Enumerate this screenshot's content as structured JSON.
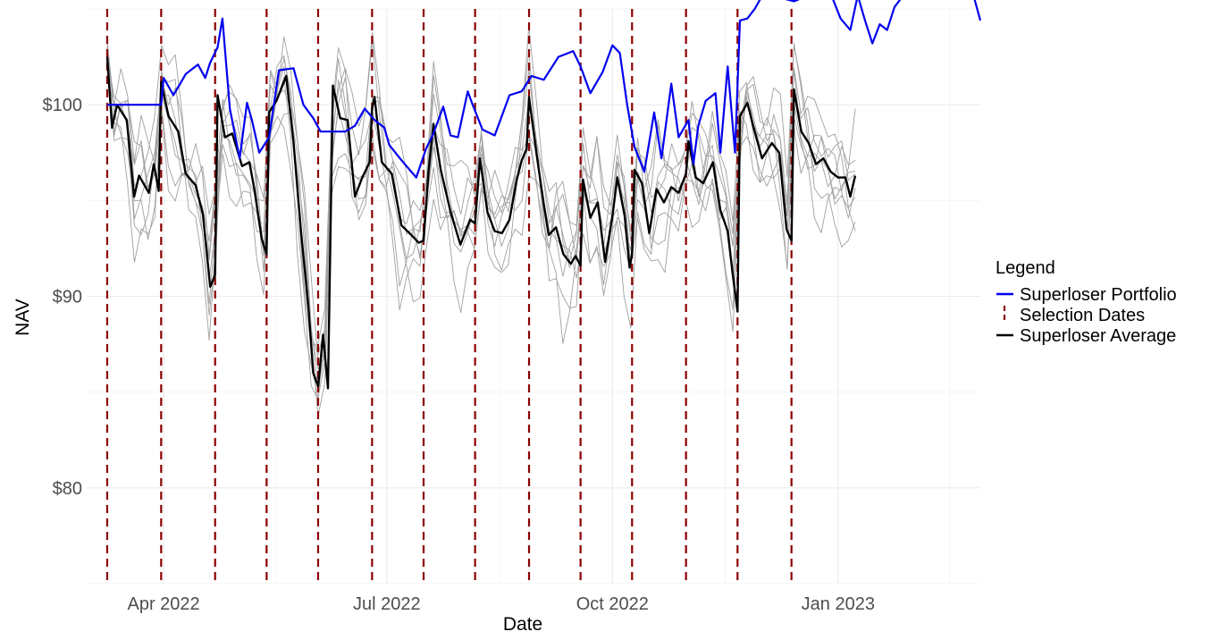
{
  "chart_data": {
    "type": "line",
    "xlabel": "Date",
    "ylabel": "NAV",
    "x_range": [
      "2022-03-01",
      "2023-02-28"
    ],
    "ylim": [
      75,
      105
    ],
    "x_ticks": [
      {
        "date": "2022-04-01",
        "label": "Apr 2022"
      },
      {
        "date": "2022-07-01",
        "label": "Jul 2022"
      },
      {
        "date": "2022-10-01",
        "label": "Oct 2022"
      },
      {
        "date": "2023-01-01",
        "label": "Jan 2023"
      }
    ],
    "y_ticks": [
      {
        "value": 80,
        "label": "$80"
      },
      {
        "value": 90,
        "label": "$90"
      },
      {
        "value": 100,
        "label": "$100"
      }
    ],
    "grid": true,
    "legend": {
      "title": "Legend",
      "position": "right",
      "entries": [
        {
          "label": "Superloser Portfolio",
          "color": "#0000ee",
          "style": "solid"
        },
        {
          "label": "Selection Dates",
          "color": "#8b0000",
          "style": "dashed"
        },
        {
          "label": "Superloser Average",
          "color": "#000000",
          "style": "solid"
        }
      ]
    },
    "selection_dates": [
      "2022-03-09",
      "2022-03-31",
      "2022-04-22",
      "2022-05-13",
      "2022-06-03",
      "2022-06-25",
      "2022-07-16",
      "2022-08-06",
      "2022-08-28",
      "2022-09-18",
      "2022-10-09",
      "2022-10-31",
      "2022-11-21",
      "2022-12-13"
    ],
    "series": [
      {
        "name": "Superloser Portfolio",
        "color": "#0000ee",
        "points": [
          [
            "2022-03-09",
            100.0
          ],
          [
            "2022-03-31",
            100.0
          ],
          [
            "2022-04-01",
            101.4
          ],
          [
            "2022-04-05",
            100.5
          ],
          [
            "2022-04-10",
            101.6
          ],
          [
            "2022-04-15",
            102.1
          ],
          [
            "2022-04-18",
            101.4
          ],
          [
            "2022-04-20",
            102.2
          ],
          [
            "2022-04-23",
            103.0
          ],
          [
            "2022-04-25",
            104.5
          ],
          [
            "2022-04-28",
            99.8
          ],
          [
            "2022-05-02",
            97.2
          ],
          [
            "2022-05-05",
            100.1
          ],
          [
            "2022-05-07",
            99.2
          ],
          [
            "2022-05-10",
            97.5
          ],
          [
            "2022-05-14",
            98.3
          ],
          [
            "2022-05-18",
            101.8
          ],
          [
            "2022-05-24",
            101.9
          ],
          [
            "2022-05-28",
            100.0
          ],
          [
            "2022-06-01",
            99.3
          ],
          [
            "2022-06-04",
            98.6
          ],
          [
            "2022-06-14",
            98.6
          ],
          [
            "2022-06-18",
            98.9
          ],
          [
            "2022-06-22",
            99.8
          ],
          [
            "2022-06-26",
            99.2
          ],
          [
            "2022-06-30",
            98.8
          ],
          [
            "2022-07-02",
            97.9
          ],
          [
            "2022-07-07",
            97.1
          ],
          [
            "2022-07-13",
            96.2
          ],
          [
            "2022-07-17",
            97.7
          ],
          [
            "2022-07-20",
            98.5
          ],
          [
            "2022-07-24",
            99.9
          ],
          [
            "2022-07-27",
            98.4
          ],
          [
            "2022-07-30",
            98.3
          ],
          [
            "2022-08-03",
            100.7
          ],
          [
            "2022-08-05",
            100.0
          ],
          [
            "2022-08-09",
            98.7
          ],
          [
            "2022-08-14",
            98.4
          ],
          [
            "2022-08-20",
            100.5
          ],
          [
            "2022-08-25",
            100.7
          ],
          [
            "2022-08-29",
            101.5
          ],
          [
            "2022-09-03",
            101.3
          ],
          [
            "2022-09-09",
            102.5
          ],
          [
            "2022-09-15",
            102.8
          ],
          [
            "2022-09-18",
            102.0
          ],
          [
            "2022-09-22",
            100.6
          ],
          [
            "2022-09-27",
            101.7
          ],
          [
            "2022-10-01",
            103.1
          ],
          [
            "2022-10-04",
            102.7
          ],
          [
            "2022-10-07",
            100.0
          ],
          [
            "2022-10-10",
            97.8
          ],
          [
            "2022-10-14",
            96.5
          ],
          [
            "2022-10-18",
            99.6
          ],
          [
            "2022-10-21",
            97.2
          ],
          [
            "2022-10-25",
            101.1
          ],
          [
            "2022-10-28",
            98.3
          ],
          [
            "2022-11-01",
            99.2
          ],
          [
            "2022-11-03",
            96.9
          ],
          [
            "2022-11-05",
            98.9
          ],
          [
            "2022-11-08",
            100.2
          ],
          [
            "2022-11-12",
            100.6
          ],
          [
            "2022-11-14",
            97.5
          ],
          [
            "2022-11-17",
            102.0
          ],
          [
            "2022-11-20",
            97.5
          ],
          [
            "2022-11-22",
            104.4
          ],
          [
            "2022-11-25",
            104.5
          ],
          [
            "2022-11-28",
            105.0
          ],
          [
            "2022-12-02",
            105.9
          ],
          [
            "2022-12-08",
            105.6
          ],
          [
            "2022-12-14",
            105.4
          ],
          [
            "2022-12-18",
            105.6
          ],
          [
            "2022-12-21",
            106.0
          ],
          [
            "2022-12-24",
            107.0
          ],
          [
            "2022-12-26",
            108.2
          ],
          [
            "2022-12-29",
            105.8
          ],
          [
            "2023-01-02",
            104.5
          ],
          [
            "2023-01-06",
            103.9
          ],
          [
            "2023-01-09",
            105.7
          ],
          [
            "2023-01-12",
            104.4
          ],
          [
            "2023-01-15",
            103.2
          ],
          [
            "2023-01-18",
            104.2
          ],
          [
            "2023-01-21",
            103.9
          ],
          [
            "2023-01-24",
            105.1
          ],
          [
            "2023-01-27",
            105.6
          ],
          [
            "2023-02-01",
            106.4
          ],
          [
            "2023-02-06",
            106.4
          ],
          [
            "2023-02-10",
            106.0
          ],
          [
            "2023-02-14",
            106.5
          ],
          [
            "2023-02-18",
            105.9
          ],
          [
            "2023-02-22",
            106.6
          ],
          [
            "2023-02-25",
            105.8
          ],
          [
            "2023-02-28",
            104.4
          ]
        ]
      },
      {
        "name": "Superloser Average",
        "color": "#000000",
        "points": [
          [
            "2022-03-09",
            102.5
          ],
          [
            "2022-03-11",
            98.8
          ],
          [
            "2022-03-13",
            100.0
          ],
          [
            "2022-03-17",
            99.2
          ],
          [
            "2022-03-20",
            95.2
          ],
          [
            "2022-03-22",
            96.3
          ],
          [
            "2022-03-26",
            95.4
          ],
          [
            "2022-03-28",
            96.9
          ],
          [
            "2022-03-30",
            95.5
          ],
          [
            "2022-03-31",
            101.2
          ],
          [
            "2022-04-03",
            99.4
          ],
          [
            "2022-04-07",
            98.6
          ],
          [
            "2022-04-10",
            96.4
          ],
          [
            "2022-04-14",
            95.8
          ],
          [
            "2022-04-17",
            94.3
          ],
          [
            "2022-04-20",
            90.5
          ],
          [
            "2022-04-22",
            91.1
          ],
          [
            "2022-04-23",
            100.5
          ],
          [
            "2022-04-26",
            98.3
          ],
          [
            "2022-04-29",
            98.5
          ],
          [
            "2022-05-03",
            96.8
          ],
          [
            "2022-05-06",
            97.0
          ],
          [
            "2022-05-08",
            95.6
          ],
          [
            "2022-05-11",
            93.0
          ],
          [
            "2022-05-13",
            92.2
          ],
          [
            "2022-05-14",
            99.6
          ],
          [
            "2022-05-17",
            100.2
          ],
          [
            "2022-05-21",
            101.5
          ],
          [
            "2022-05-24",
            98.0
          ],
          [
            "2022-05-27",
            93.4
          ],
          [
            "2022-05-30",
            89.5
          ],
          [
            "2022-06-01",
            86.0
          ],
          [
            "2022-06-03",
            85.3
          ],
          [
            "2022-06-05",
            88.0
          ],
          [
            "2022-06-07",
            85.2
          ],
          [
            "2022-06-09",
            101.0
          ],
          [
            "2022-06-12",
            99.3
          ],
          [
            "2022-06-15",
            99.2
          ],
          [
            "2022-06-18",
            95.2
          ],
          [
            "2022-06-21",
            96.2
          ],
          [
            "2022-06-24",
            97.0
          ],
          [
            "2022-06-25",
            99.8
          ],
          [
            "2022-06-26",
            100.4
          ],
          [
            "2022-06-29",
            97.0
          ],
          [
            "2022-07-03",
            96.4
          ],
          [
            "2022-07-07",
            93.7
          ],
          [
            "2022-07-11",
            93.2
          ],
          [
            "2022-07-14",
            92.8
          ],
          [
            "2022-07-16",
            92.9
          ],
          [
            "2022-07-18",
            96.5
          ],
          [
            "2022-07-20",
            99.0
          ],
          [
            "2022-07-23",
            96.6
          ],
          [
            "2022-07-27",
            94.4
          ],
          [
            "2022-07-31",
            92.7
          ],
          [
            "2022-08-04",
            94.0
          ],
          [
            "2022-08-06",
            93.8
          ],
          [
            "2022-08-08",
            97.2
          ],
          [
            "2022-08-11",
            94.4
          ],
          [
            "2022-08-14",
            93.4
          ],
          [
            "2022-08-17",
            93.3
          ],
          [
            "2022-08-20",
            94.0
          ],
          [
            "2022-08-23",
            96.1
          ],
          [
            "2022-08-25",
            97.1
          ],
          [
            "2022-08-27",
            97.7
          ],
          [
            "2022-08-28",
            100.4
          ],
          [
            "2022-08-31",
            97.5
          ],
          [
            "2022-09-03",
            94.8
          ],
          [
            "2022-09-05",
            93.2
          ],
          [
            "2022-09-08",
            93.6
          ],
          [
            "2022-09-11",
            92.2
          ],
          [
            "2022-09-14",
            91.7
          ],
          [
            "2022-09-16",
            92.1
          ],
          [
            "2022-09-18",
            91.6
          ],
          [
            "2022-09-19",
            96.1
          ],
          [
            "2022-09-22",
            94.1
          ],
          [
            "2022-09-25",
            94.9
          ],
          [
            "2022-09-28",
            91.8
          ],
          [
            "2022-10-01",
            94.2
          ],
          [
            "2022-10-03",
            96.2
          ],
          [
            "2022-10-06",
            94.2
          ],
          [
            "2022-10-08",
            91.5
          ],
          [
            "2022-10-09",
            92.2
          ],
          [
            "2022-10-10",
            96.6
          ],
          [
            "2022-10-13",
            95.9
          ],
          [
            "2022-10-16",
            93.3
          ],
          [
            "2022-10-19",
            95.6
          ],
          [
            "2022-10-22",
            94.9
          ],
          [
            "2022-10-25",
            95.7
          ],
          [
            "2022-10-28",
            95.4
          ],
          [
            "2022-10-31",
            96.4
          ],
          [
            "2022-11-01",
            98.1
          ],
          [
            "2022-11-04",
            96.2
          ],
          [
            "2022-11-07",
            95.9
          ],
          [
            "2022-11-11",
            97.0
          ],
          [
            "2022-11-14",
            94.5
          ],
          [
            "2022-11-17",
            93.4
          ],
          [
            "2022-11-19",
            91.2
          ],
          [
            "2022-11-21",
            89.2
          ],
          [
            "2022-11-22",
            99.4
          ],
          [
            "2022-11-25",
            100.1
          ],
          [
            "2022-11-28",
            98.6
          ],
          [
            "2022-12-01",
            97.2
          ],
          [
            "2022-12-05",
            98.0
          ],
          [
            "2022-12-08",
            97.5
          ],
          [
            "2022-12-11",
            93.5
          ],
          [
            "2022-12-13",
            92.9
          ],
          [
            "2022-12-14",
            100.8
          ],
          [
            "2022-12-17",
            98.6
          ],
          [
            "2022-12-20",
            98.0
          ],
          [
            "2022-12-23",
            96.9
          ],
          [
            "2022-12-26",
            97.2
          ],
          [
            "2022-12-29",
            96.5
          ],
          [
            "2023-01-01",
            96.2
          ],
          [
            "2023-01-04",
            96.2
          ],
          [
            "2023-01-06",
            95.2
          ],
          [
            "2023-01-08",
            96.3
          ]
        ]
      }
    ],
    "constituents": {
      "color": "#a0a0a0",
      "deviations": [
        [
          0.0,
          1.4,
          -0.8,
          0.9,
          -1.6,
          2.1,
          -0.4,
          1.1,
          -2.3,
          0.6,
          1.8,
          -1.2,
          0.3,
          -0.9,
          2.4,
          -1.5,
          0.7,
          1.3,
          -0.2,
          -1.9,
          1.0,
          0.4,
          -0.6,
          1.7
        ],
        [
          0.0,
          -2.2,
          1.9,
          -1.1,
          2.6,
          -0.7,
          1.5,
          -3.0,
          0.8,
          2.2,
          -1.4,
          0.5,
          1.6,
          -2.5,
          0.9,
          1.2,
          -1.8,
          2.9,
          -0.5,
          1.4,
          -2.0,
          0.6,
          1.1,
          -1.3
        ],
        [
          0.0,
          3.1,
          -1.5,
          2.4,
          -0.9,
          -2.7,
          1.6,
          0.4,
          3.3,
          -1.2,
          0.8,
          2.6,
          -3.1,
          1.9,
          -0.6,
          2.8,
          0.3,
          -2.2,
          1.7,
          0.9,
          -1.0,
          2.5,
          -0.8,
          0.2
        ],
        [
          0.0,
          -1.3,
          -2.6,
          1.2,
          0.5,
          1.9,
          -3.4,
          2.2,
          -1.1,
          -2.8,
          3.0,
          -0.5,
          2.1,
          0.7,
          -3.2,
          0.4,
          2.3,
          -1.6,
          -0.9,
          2.7,
          0.6,
          -2.9,
          1.5,
          0.8
        ],
        [
          0.0,
          0.9,
          3.5,
          -2.4,
          1.4,
          0.3,
          2.7,
          -1.9,
          -0.4,
          3.6,
          -2.6,
          1.0,
          -0.3,
          3.2,
          1.1,
          -2.1,
          -0.7,
          3.4,
          -2.8,
          0.5,
          2.0,
          -0.2,
          -3.3,
          2.6
        ],
        [
          0.0,
          -3.6,
          0.7,
          -0.5,
          -3.0,
          1.2,
          -1.0,
          3.8,
          -2.7,
          0.9,
          -0.2,
          -3.5,
          2.8,
          -1.4,
          0.6,
          -3.3,
          1.9,
          0.8,
          2.5,
          -3.1,
          1.3,
          -1.7,
          0.4,
          -2.4
        ],
        [
          0.0,
          2.3,
          -4.0,
          3.0,
          -1.8,
          -0.6,
          4.1,
          -0.8,
          1.6,
          -4.2,
          1.7,
          3.7,
          -1.0,
          -3.8,
          2.9,
          1.6,
          -4.1,
          0.2,
          -1.4,
          3.9,
          -2.7,
          1.1,
          2.8,
          -0.9
        ],
        [
          0.0,
          -0.6,
          2.1,
          -3.7,
          3.6,
          -1.5,
          -2.4,
          1.7,
          4.2,
          -1.6,
          -3.8,
          1.8,
          0.9,
          2.0,
          -4.0,
          3.5,
          -0.4,
          -3.9,
          3.3,
          -0.8,
          1.6,
          3.6,
          -2.1,
          -3.2
        ]
      ]
    }
  }
}
